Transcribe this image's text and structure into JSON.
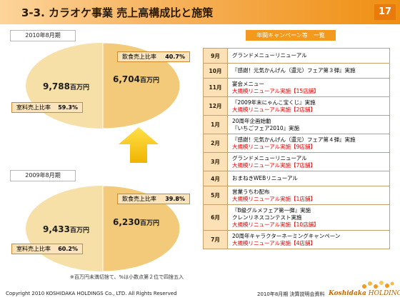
{
  "header": {
    "title": "3-3. カラオケ事業 売上高構成比と施策",
    "page_number": "17"
  },
  "pies": [
    {
      "period": "2010年8月期",
      "food": {
        "label": "飲食売上比率",
        "percent": "40.7%",
        "amount": "6,704",
        "unit": "百万円"
      },
      "room": {
        "label": "室料売上比率",
        "percent": "59.3%",
        "amount": "9,788",
        "unit": "百万円"
      }
    },
    {
      "period": "2009年8月期",
      "food": {
        "label": "飲食売上比率",
        "percent": "39.8%",
        "amount": "6,230",
        "unit": "百万円"
      },
      "room": {
        "label": "室料売上比率",
        "percent": "60.2%",
        "amount": "9,433",
        "unit": "百万円"
      }
    }
  ],
  "footnote": "※百万円未満切捨て、%は小数点第２位で四捨五入",
  "campaign": {
    "title": "年間キャンペーン等　一覧",
    "rows": [
      {
        "month": "9月",
        "lines": [
          "グランドメニューリニューアル"
        ],
        "red": []
      },
      {
        "month": "10月",
        "lines": [
          "『感謝！元気かんげん（還元）フェア第３弾』実施"
        ],
        "red": []
      },
      {
        "month": "11月",
        "lines": [
          "宴会メニュー"
        ],
        "red": [
          "大規模リニューアル実施【15店舗】"
        ]
      },
      {
        "month": "12月",
        "lines": [
          "『2009年末にゃんこ宝くじ』実施"
        ],
        "red": [
          "大規模リニューアル実施【2店舗】"
        ]
      },
      {
        "month": "1月",
        "lines": [
          "20周年企画始動",
          "『いちごフェア2010』実施"
        ],
        "red": []
      },
      {
        "month": "2月",
        "lines": [
          "『感謝！元気かんげん（還元）フェア第４弾』実施"
        ],
        "red": [
          "大規模リニューアル実施【9店舗】"
        ]
      },
      {
        "month": "3月",
        "lines": [
          "グランドメニューリニューアル"
        ],
        "red": [
          "大規模リニューアル実施【7店舗】"
        ]
      },
      {
        "month": "4月",
        "lines": [
          "おまねきWEBリニューアル"
        ],
        "red": []
      },
      {
        "month": "5月",
        "lines": [
          "営業うちわ配布"
        ],
        "red": [
          "大規模リニューアル実施【1店舗】"
        ]
      },
      {
        "month": "6月",
        "lines": [
          "『B級グルメフェア第一弾』実施",
          "クレンリネスコンテスト実施"
        ],
        "red": [
          "大規模リニューアル実施【10店舗】"
        ]
      },
      {
        "month": "7月",
        "lines": [
          "20周年キャラクターネーミングキャンペーン"
        ],
        "red": [
          "大規模リニューアル実施【4店舗】"
        ]
      }
    ]
  },
  "footer": {
    "copyright": "Copyright 2010 KOSHIDAKA HOLDINGS Co., LTD. All Rights Reserved",
    "doc": "2010年8月期 決算説明会資料",
    "logo_main": "Koshidaka",
    "logo_sub": "HOLDINGS"
  },
  "colors": {
    "pie_room": "#f7dfa8",
    "pie_food": "#f3c97a",
    "accent": "#e87b0c",
    "arrow": "#f5c518"
  }
}
